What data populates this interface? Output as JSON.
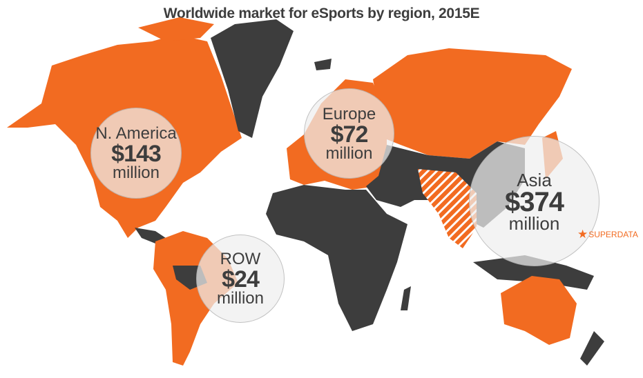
{
  "title": "Worldwide market for eSports by region, 2015E",
  "colors": {
    "highlight": "#f26b21",
    "other": "#3d3d3d",
    "bubble": "#eeeeee"
  },
  "chart_data": {
    "type": "bubble-map",
    "title": "Worldwide market for eSports by region, 2015E",
    "unit": "million USD",
    "regions": [
      {
        "name": "N. America",
        "label": "$143",
        "value": 143,
        "unit": "million"
      },
      {
        "name": "Europe",
        "label": "$72",
        "value": 72,
        "unit": "million"
      },
      {
        "name": "Asia",
        "label": "$374",
        "value": 374,
        "unit": "million"
      },
      {
        "name": "ROW",
        "label": "$24",
        "value": 24,
        "unit": "million"
      }
    ]
  },
  "brand": {
    "icon": "star-icon",
    "name": "SUPERDATA"
  }
}
